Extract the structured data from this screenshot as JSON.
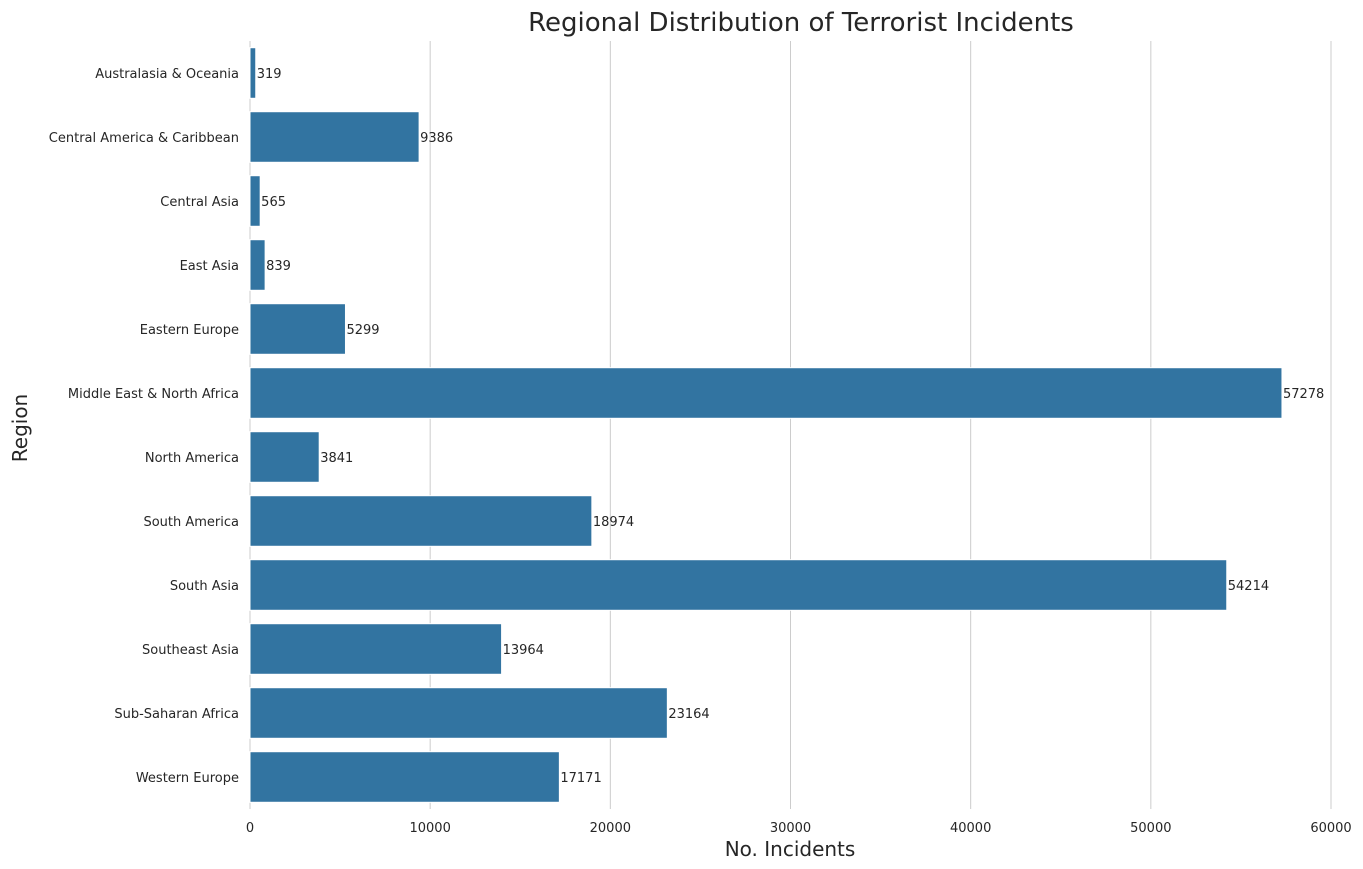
{
  "chart_data": {
    "type": "bar",
    "orientation": "horizontal",
    "title": "Regional Distribution of Terrorist Incidents",
    "xlabel": "No. Incidents",
    "ylabel": "Region",
    "xlim": [
      0,
      60000
    ],
    "xticks": [
      0,
      10000,
      20000,
      30000,
      40000,
      50000,
      60000
    ],
    "grid": "vertical",
    "categories": [
      "Australasia & Oceania",
      "Central America & Caribbean",
      "Central Asia",
      "East Asia",
      "Eastern Europe",
      "Middle East & North Africa",
      "North America",
      "South America",
      "South Asia",
      "Southeast Asia",
      "Sub-Saharan Africa",
      "Western Europe"
    ],
    "values": [
      319,
      9386,
      565,
      839,
      5299,
      57278,
      3841,
      18974,
      54214,
      13964,
      23164,
      17171
    ],
    "data_labels": [
      "319",
      "9386",
      "565",
      "839",
      "5299",
      "57278",
      "3841",
      "18974",
      "54214",
      "13964",
      "23164",
      "17171"
    ],
    "bar_color": "#3274a1"
  }
}
